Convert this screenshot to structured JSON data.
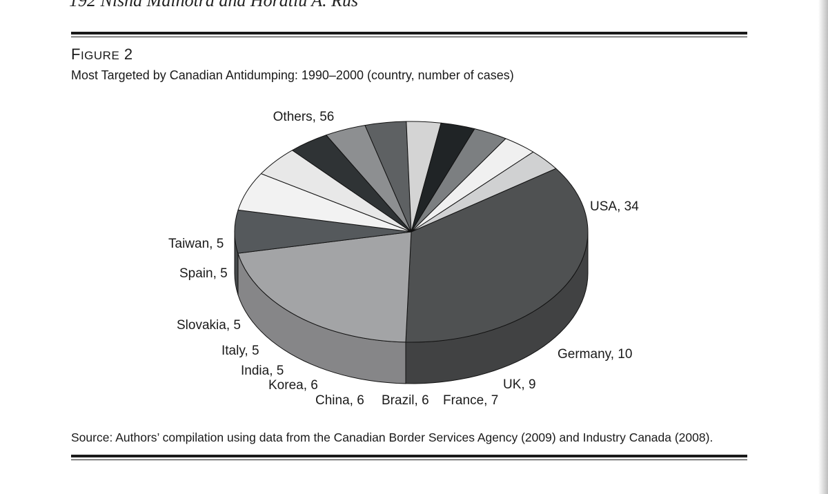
{
  "running_head": "192   Nisha Malhotra and Horatiu A. Rus",
  "figure": {
    "label_cap": "F",
    "label_rest": "IGURE",
    "label_num": "2",
    "title": "Most Targeted by Canadian Antidumping: 1990–2000 (country, number of cases)"
  },
  "chart_data": {
    "type": "pie",
    "style": "3d-exploded-tilted",
    "title": "Most Targeted by Canadian Antidumping: 1990–2000 (country, number of cases)",
    "slices": [
      {
        "name": "Others",
        "value": 56,
        "label": "Others, 56",
        "color": "#4f5152"
      },
      {
        "name": "USA",
        "value": 34,
        "label": "USA, 34",
        "color": "#a3a4a6"
      },
      {
        "name": "Germany",
        "value": 10,
        "label": "Germany, 10",
        "color": "#55595c"
      },
      {
        "name": "UK",
        "value": 9,
        "label": "UK, 9",
        "color": "#f2f2f2"
      },
      {
        "name": "France",
        "value": 7,
        "label": "France, 7",
        "color": "#e8e8e8"
      },
      {
        "name": "Brazil",
        "value": 6,
        "label": "Brazil, 6",
        "color": "#2f3335"
      },
      {
        "name": "China",
        "value": 6,
        "label": "China, 6",
        "color": "#8d8f91"
      },
      {
        "name": "Korea",
        "value": 6,
        "label": "Korea, 6",
        "color": "#5e6163"
      },
      {
        "name": "India",
        "value": 5,
        "label": "India, 5",
        "color": "#d4d4d4"
      },
      {
        "name": "Italy",
        "value": 5,
        "label": "Italy, 5",
        "color": "#202426"
      },
      {
        "name": "Slovakia",
        "value": 5,
        "label": "Slovakia, 5",
        "color": "#7c7f81"
      },
      {
        "name": "Spain",
        "value": 5,
        "label": "Spain, 5",
        "color": "#f0f0f0"
      },
      {
        "name": "Taiwan",
        "value": 5,
        "label": "Taiwan, 5",
        "color": "#d0d1d2"
      }
    ]
  },
  "source": "Source: Authors’ compilation using data from the Canadian Border Services Agency (2009) and Industry Canada (2008)."
}
